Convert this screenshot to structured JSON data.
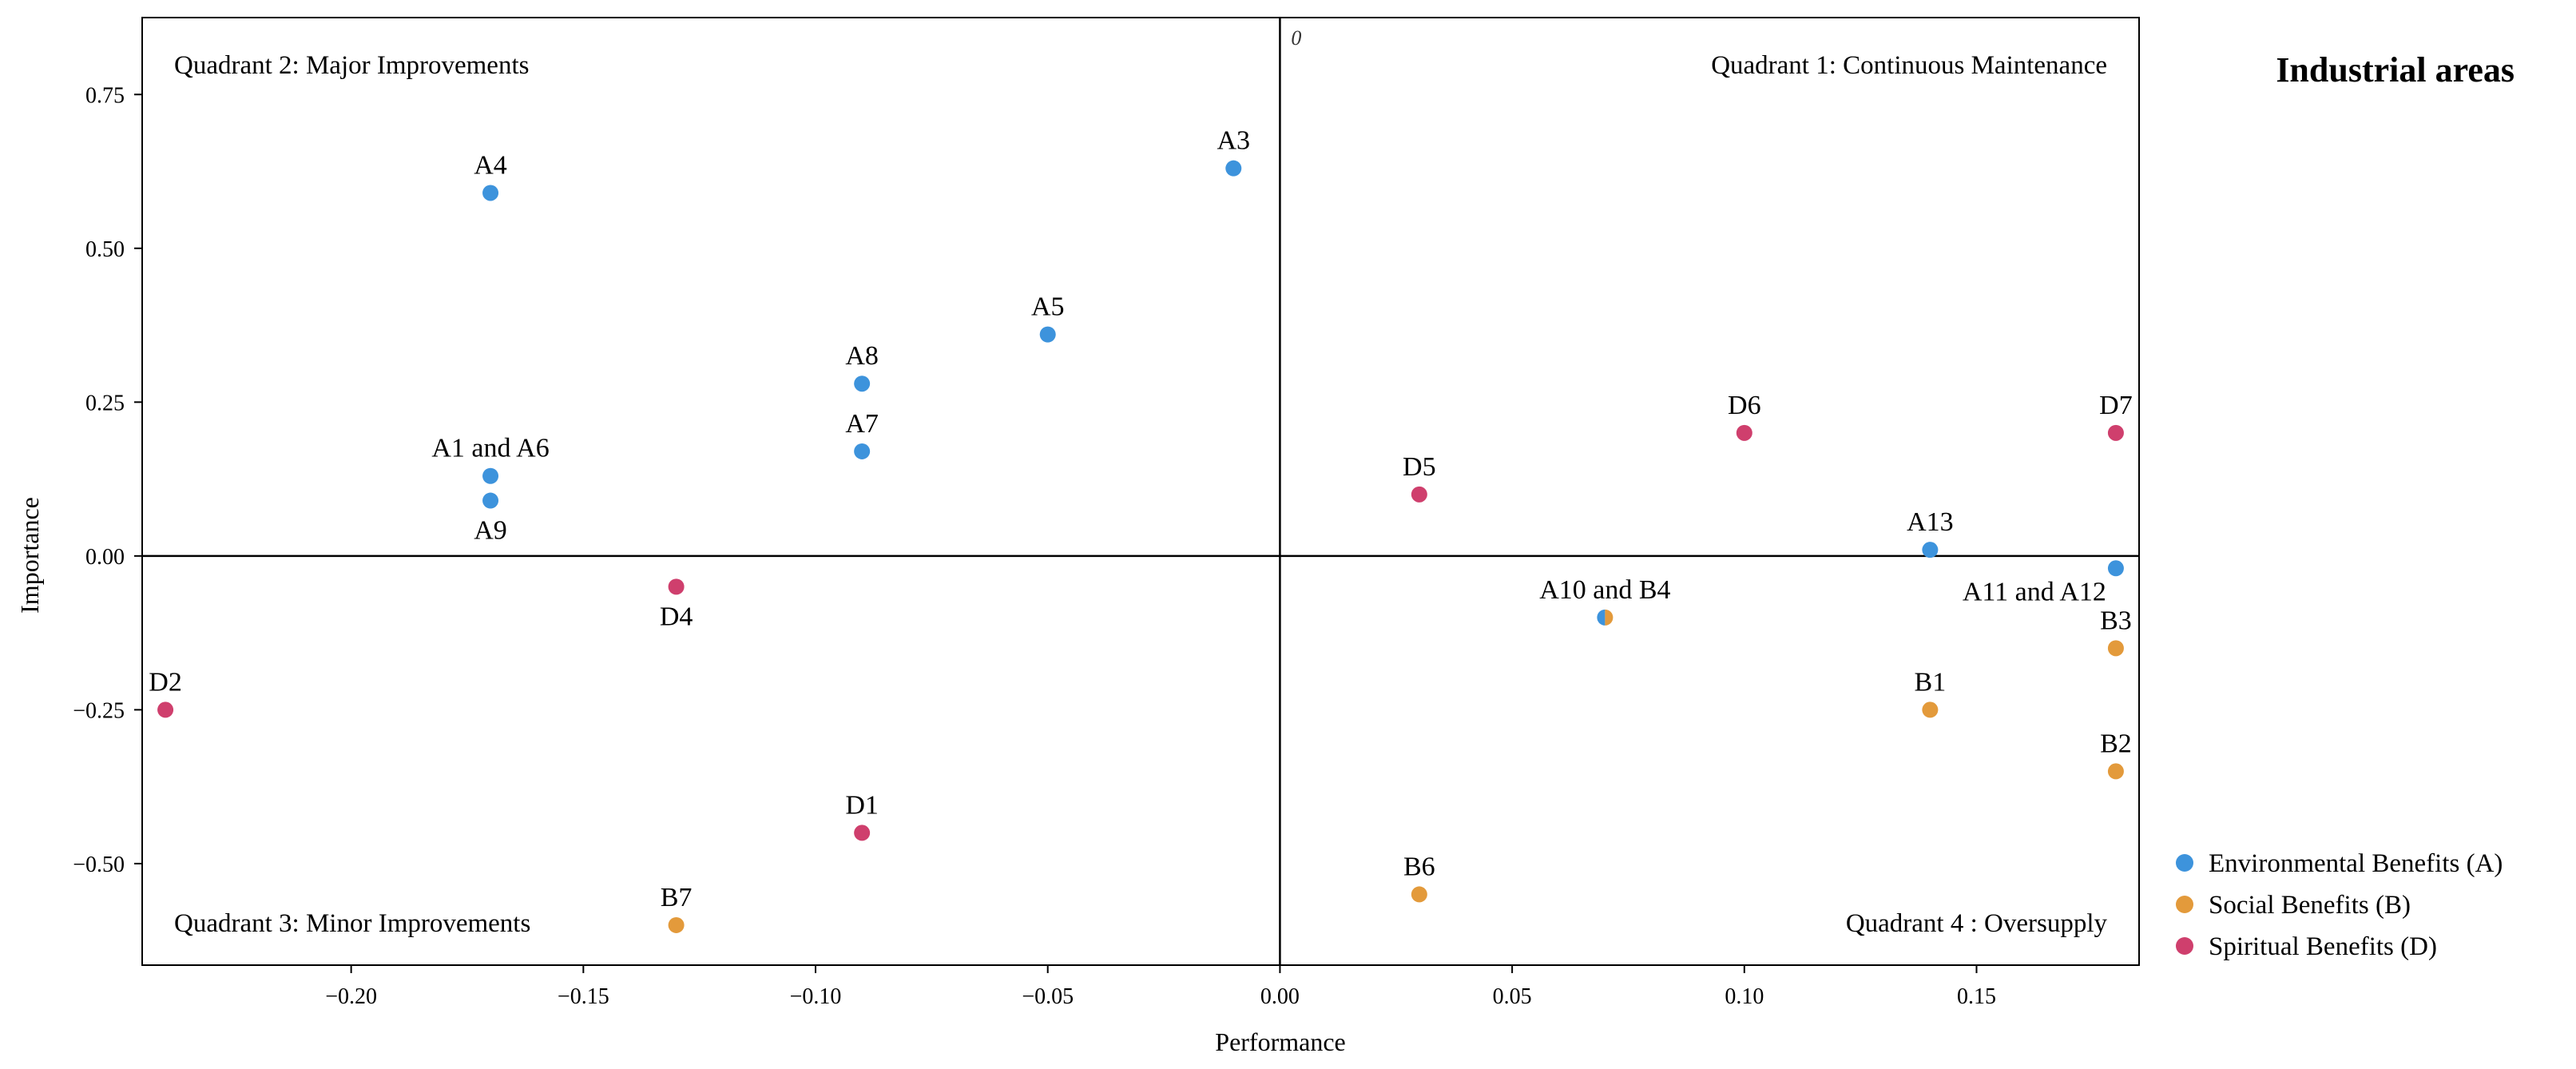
{
  "chart_data": {
    "type": "scatter",
    "title": "Industrial areas",
    "xlabel": "Performance",
    "ylabel": "Importance",
    "xlim": [
      -0.245,
      0.185
    ],
    "ylim": [
      -0.665,
      0.875
    ],
    "xticks": [
      -0.2,
      -0.15,
      -0.1,
      -0.05,
      0.0,
      0.05,
      0.1,
      0.15
    ],
    "xtick_labels": [
      "−0.20",
      "−0.15",
      "−0.10",
      "−0.05",
      "0.00",
      "0.05",
      "0.10",
      "0.15"
    ],
    "yticks": [
      0.75,
      0.5,
      0.25,
      0.0,
      -0.25,
      -0.5
    ],
    "ytick_labels": [
      "0.75",
      "0.50",
      "0.25",
      "0.00",
      "−0.25",
      "−0.50"
    ],
    "origin_label": "0",
    "quadrants": [
      {
        "name": "q1",
        "label": "Quadrant 1: Continuous Maintenance",
        "position": "top-right"
      },
      {
        "name": "q2",
        "label": "Quadrant 2: Major Improvements",
        "position": "top-left"
      },
      {
        "name": "q3",
        "label": "Quadrant 3: Minor Improvements",
        "position": "bottom-left"
      },
      {
        "name": "q4",
        "label": "Quadrant 4 : Oversupply",
        "position": "bottom-right"
      }
    ],
    "series": [
      {
        "name": "Environmental Benefits (A)",
        "color": "#3d93dc"
      },
      {
        "name": "Social Benefits (B)",
        "color": "#e39a3b"
      },
      {
        "name": "Spiritual Benefits (D)",
        "color": "#cf3f6d"
      }
    ],
    "points": [
      {
        "id": "A3",
        "x": -0.01,
        "y": 0.63,
        "series": 0,
        "label": "A3",
        "label_pos": "above"
      },
      {
        "id": "A4",
        "x": -0.17,
        "y": 0.59,
        "series": 0,
        "label": "A4",
        "label_pos": "above"
      },
      {
        "id": "A5",
        "x": -0.05,
        "y": 0.36,
        "series": 0,
        "label": "A5",
        "label_pos": "above"
      },
      {
        "id": "A8",
        "x": -0.09,
        "y": 0.28,
        "series": 0,
        "label": "A8",
        "label_pos": "above"
      },
      {
        "id": "A7",
        "x": -0.09,
        "y": 0.17,
        "series": 0,
        "label": "A7",
        "label_pos": "above"
      },
      {
        "id": "A1A6",
        "x": -0.17,
        "y": 0.13,
        "series": 0,
        "label": "A1 and A6",
        "label_pos": "above"
      },
      {
        "id": "A9",
        "x": -0.17,
        "y": 0.09,
        "series": 0,
        "label": "A9",
        "label_pos": "below"
      },
      {
        "id": "A13",
        "x": 0.14,
        "y": 0.01,
        "series": 0,
        "label": "A13",
        "label_pos": "above"
      },
      {
        "id": "A11A12",
        "x": 0.18,
        "y": -0.02,
        "series": 0,
        "label": "A11 and A12",
        "label_pos": "below-left"
      },
      {
        "id": "A10B4",
        "x": 0.07,
        "y": -0.1,
        "series": 0,
        "split_series": 1,
        "label": "A10 and B4",
        "label_pos": "above"
      },
      {
        "id": "B3",
        "x": 0.18,
        "y": -0.15,
        "series": 1,
        "label": "B3",
        "label_pos": "above"
      },
      {
        "id": "B1",
        "x": 0.14,
        "y": -0.25,
        "series": 1,
        "label": "B1",
        "label_pos": "above"
      },
      {
        "id": "B2",
        "x": 0.18,
        "y": -0.35,
        "series": 1,
        "label": "B2",
        "label_pos": "above"
      },
      {
        "id": "B6",
        "x": 0.03,
        "y": -0.55,
        "series": 1,
        "label": "B6",
        "label_pos": "above"
      },
      {
        "id": "B7",
        "x": -0.13,
        "y": -0.6,
        "series": 1,
        "label": "B7",
        "label_pos": "above"
      },
      {
        "id": "D6",
        "x": 0.1,
        "y": 0.2,
        "series": 2,
        "label": "D6",
        "label_pos": "above"
      },
      {
        "id": "D7",
        "x": 0.18,
        "y": 0.2,
        "series": 2,
        "label": "D7",
        "label_pos": "above"
      },
      {
        "id": "D5",
        "x": 0.03,
        "y": 0.1,
        "series": 2,
        "label": "D5",
        "label_pos": "above"
      },
      {
        "id": "D4",
        "x": -0.13,
        "y": -0.05,
        "series": 2,
        "label": "D4",
        "label_pos": "below"
      },
      {
        "id": "D2",
        "x": -0.24,
        "y": -0.25,
        "series": 2,
        "label": "D2",
        "label_pos": "above"
      },
      {
        "id": "D1",
        "x": -0.09,
        "y": -0.45,
        "series": 2,
        "label": "D1",
        "label_pos": "above"
      }
    ],
    "legend_position": "bottom-right"
  }
}
